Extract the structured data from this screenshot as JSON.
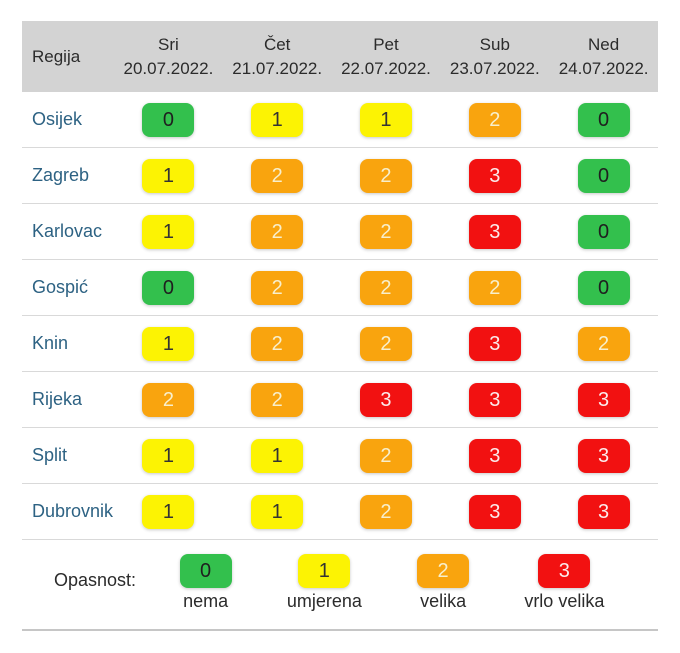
{
  "chart_data": {
    "type": "heatmap",
    "title": "",
    "corner_label": "Regija",
    "legend_label": "Opasnost:",
    "columns": [
      {
        "day": "Sri",
        "date": "20.07.2022."
      },
      {
        "day": "Čet",
        "date": "21.07.2022."
      },
      {
        "day": "Pet",
        "date": "22.07.2022."
      },
      {
        "day": "Sub",
        "date": "23.07.2022."
      },
      {
        "day": "Ned",
        "date": "24.07.2022."
      }
    ],
    "rows": [
      {
        "region": "Osijek",
        "values": [
          0,
          1,
          1,
          2,
          0
        ]
      },
      {
        "region": "Zagreb",
        "values": [
          1,
          2,
          2,
          3,
          0
        ]
      },
      {
        "region": "Karlovac",
        "values": [
          1,
          2,
          2,
          3,
          0
        ]
      },
      {
        "region": "Gospić",
        "values": [
          0,
          2,
          2,
          2,
          0
        ]
      },
      {
        "region": "Knin",
        "values": [
          1,
          2,
          2,
          3,
          2
        ]
      },
      {
        "region": "Rijeka",
        "values": [
          2,
          2,
          3,
          3,
          3
        ]
      },
      {
        "region": "Split",
        "values": [
          1,
          1,
          2,
          3,
          3
        ]
      },
      {
        "region": "Dubrovnik",
        "values": [
          1,
          1,
          2,
          3,
          3
        ]
      }
    ],
    "levels": [
      {
        "value": 0,
        "label": "nema",
        "color": "#33c04d",
        "text_color": "#1f1f1f"
      },
      {
        "value": 1,
        "label": "umjerena",
        "color": "#fcf303",
        "text_color": "#333333"
      },
      {
        "value": 2,
        "label": "velika",
        "color": "#f9a40e",
        "text_color": "#f8efcc"
      },
      {
        "value": 3,
        "label": "vrlo velika",
        "color": "#f21111",
        "text_color": "#fbebeb"
      }
    ],
    "layout": {
      "header_background": "#d3d3d3",
      "region_text_color": "#2d6283",
      "row_divider_color": "#d9d9d9",
      "bottom_border_color": "#c6c6c6"
    }
  }
}
